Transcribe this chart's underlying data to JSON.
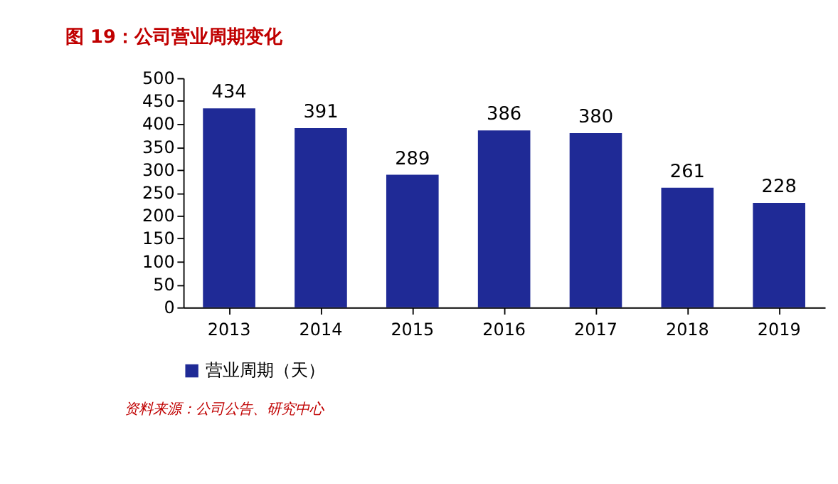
{
  "chart_data": {
    "type": "bar",
    "title": "图 19：公司营业周期变化",
    "categories": [
      "2013",
      "2014",
      "2015",
      "2016",
      "2017",
      "2018",
      "2019"
    ],
    "series": [
      {
        "name": "营业周期（天）",
        "color": "#1f2a96",
        "values": [
          434,
          391,
          289,
          386,
          380,
          261,
          228
        ]
      }
    ],
    "ylim": [
      0,
      500
    ],
    "yticks": [
      0,
      50,
      100,
      150,
      200,
      250,
      300,
      350,
      400,
      450,
      500
    ],
    "grid": false,
    "legend": "bottom",
    "data_labels": true,
    "annotations": [
      "资料来源：公司公告、研究中心"
    ]
  }
}
